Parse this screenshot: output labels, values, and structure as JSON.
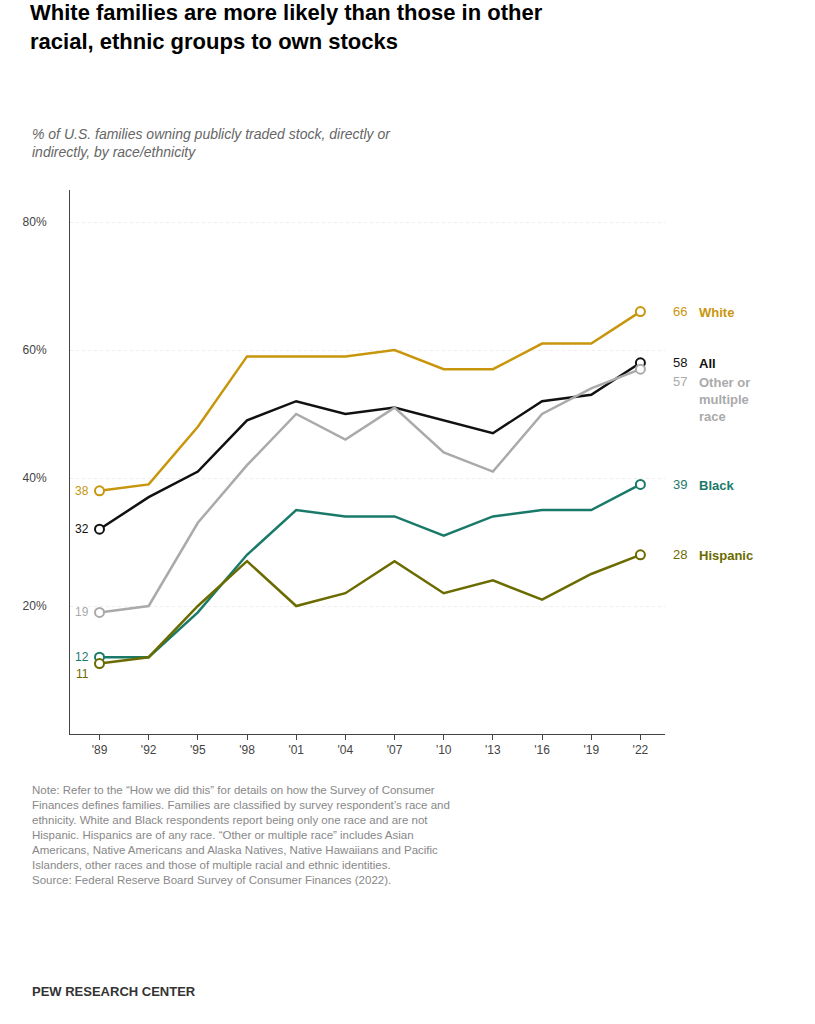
{
  "chart_data": {
    "type": "line",
    "title": "White families are more likely than those in other\nracial, ethnic groups to own stocks",
    "subtitle": "% of U.S. families owning publicly traded stock, directly or\nindirectly, by race/ethnicity",
    "x": [
      1989,
      1992,
      1995,
      1998,
      2001,
      2004,
      2007,
      2010,
      2013,
      2016,
      2019,
      2022
    ],
    "xlim": [
      1987.2,
      2023.5
    ],
    "xticks": [
      {
        "value": 1989,
        "label": "'89"
      },
      {
        "value": 1992,
        "label": "'92"
      },
      {
        "value": 1995,
        "label": "'95"
      },
      {
        "value": 1998,
        "label": "'98"
      },
      {
        "value": 2001,
        "label": "'01"
      },
      {
        "value": 2004,
        "label": "'04"
      },
      {
        "value": 2007,
        "label": "'07"
      },
      {
        "value": 2010,
        "label": "'10"
      },
      {
        "value": 2013,
        "label": "'13"
      },
      {
        "value": 2016,
        "label": "'16"
      },
      {
        "value": 2019,
        "label": "'19"
      },
      {
        "value": 2022,
        "label": "'22"
      }
    ],
    "ylim": [
      0,
      85
    ],
    "yticks": [
      {
        "value": 20,
        "label": "20%"
      },
      {
        "value": 40,
        "label": "40%"
      },
      {
        "value": 60,
        "label": "60%"
      },
      {
        "value": 80,
        "label": "80%"
      }
    ],
    "grid": true,
    "series": [
      {
        "name": "White",
        "color": "#C8960C",
        "values": [
          38,
          39,
          48,
          59,
          59,
          59,
          60,
          57,
          57,
          61,
          61,
          66
        ],
        "value_labels": [
          "38",
          null,
          null,
          null,
          null,
          null,
          null,
          null,
          null,
          null,
          null,
          "66"
        ]
      },
      {
        "name": "All",
        "color": "#111111",
        "values": [
          32,
          37,
          41,
          49,
          52,
          50,
          51,
          49,
          47,
          52,
          53,
          58
        ],
        "value_labels": [
          "32",
          null,
          null,
          null,
          null,
          null,
          null,
          null,
          null,
          null,
          null,
          "58"
        ]
      },
      {
        "name": "Other or\nmultiple\nrace",
        "color": "#AAAAAA",
        "values": [
          19,
          20,
          33,
          42,
          50,
          46,
          51,
          44,
          41,
          50,
          54,
          57
        ],
        "value_labels": [
          "19",
          null,
          null,
          null,
          null,
          null,
          null,
          null,
          null,
          null,
          null,
          "57"
        ]
      },
      {
        "name": "Black",
        "color": "#1A7A6A",
        "values": [
          12,
          12,
          19,
          28,
          35,
          34,
          34,
          31,
          34,
          35,
          35,
          39
        ],
        "value_labels": [
          "12",
          null,
          null,
          null,
          null,
          null,
          null,
          null,
          null,
          null,
          null,
          "39"
        ]
      },
      {
        "name": "Hispanic",
        "color": "#6B6B00",
        "values": [
          11,
          12,
          20,
          27,
          20,
          22,
          27,
          22,
          24,
          21,
          25,
          28
        ],
        "value_labels": [
          "11",
          null,
          null,
          null,
          null,
          null,
          null,
          null,
          null,
          null,
          null,
          "28"
        ]
      }
    ],
    "annotations": [
      "Note: Refer to the “How we did this” for details on how the Survey of Consumer\nFinances defines families. Families are classified by survey respondent’s race and\nethnicity. White and Black respondents report being only one race and are not\nHispanic. Hispanics are of any race. “Other or multiple race” includes Asian\nAmericans, Native Americans and Alaska Natives, Native Hawaiians and Pacific\nIslanders, other races and those of multiple racial and ethnic identities.\nSource: Federal Reserve Board Survey of Consumer Finances (2022).",
      "PEW RESEARCH CENTER"
    ]
  }
}
